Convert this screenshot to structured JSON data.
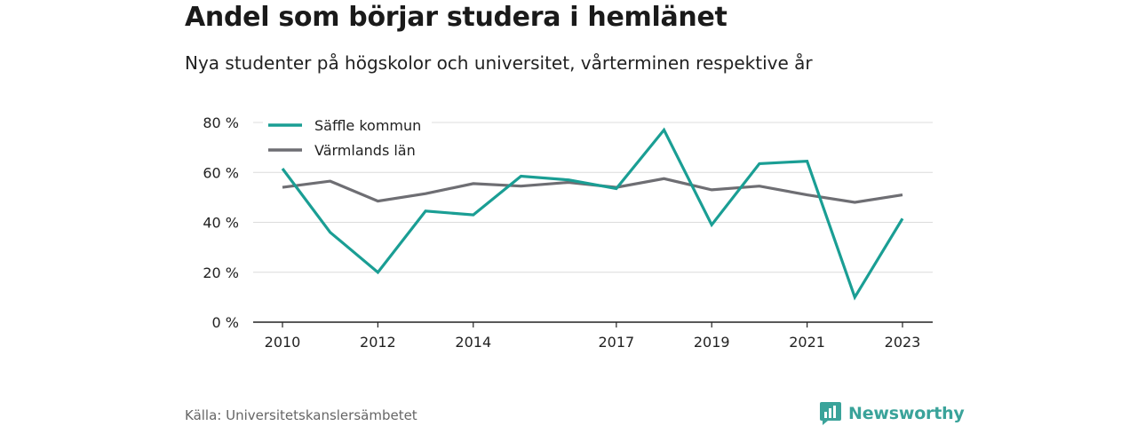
{
  "header": {
    "title": "Andel som börjar studera i hemlänet",
    "subtitle": "Nya studenter på högskolor och universitet, vårterminen respektive år"
  },
  "footer": {
    "source": "Källa: Universitetskanslersämbetet",
    "brand": "Newsworthy",
    "brand_icon": "bar-chart-icon",
    "brand_color": "#3aa39a"
  },
  "chart_data": {
    "type": "line",
    "title": "Andel som börjar studera i hemlänet",
    "subtitle": "Nya studenter på högskolor och universitet, vårterminen respektive år",
    "xlabel": "",
    "ylabel": "",
    "x": [
      2010,
      2011,
      2012,
      2013,
      2014,
      2015,
      2016,
      2017,
      2018,
      2019,
      2020,
      2021,
      2022,
      2023
    ],
    "x_tick_labels": [
      "2010",
      "2012",
      "2014",
      "2017",
      "2019",
      "2021",
      "2023"
    ],
    "x_tick_values": [
      2010,
      2012,
      2014,
      2017,
      2019,
      2021,
      2023
    ],
    "y_tick_labels": [
      "0 %",
      "20 %",
      "40 %",
      "60 %",
      "80 %"
    ],
    "y_tick_values": [
      0,
      20,
      40,
      60,
      80
    ],
    "ylim": [
      0,
      80
    ],
    "grid": "horizontal",
    "legend_position": "top-left",
    "series": [
      {
        "name": "Säffle kommun",
        "color": "#1a9e94",
        "values": [
          61.5,
          36,
          20,
          44.5,
          43,
          58.5,
          57,
          53.5,
          77,
          39,
          63.5,
          64.5,
          10,
          41.5
        ]
      },
      {
        "name": "Värmlands län",
        "color": "#6e6e73",
        "values": [
          54,
          56.5,
          48.5,
          51.5,
          55.5,
          54.5,
          56,
          54,
          57.5,
          53,
          54.5,
          51,
          48,
          51
        ]
      }
    ]
  }
}
